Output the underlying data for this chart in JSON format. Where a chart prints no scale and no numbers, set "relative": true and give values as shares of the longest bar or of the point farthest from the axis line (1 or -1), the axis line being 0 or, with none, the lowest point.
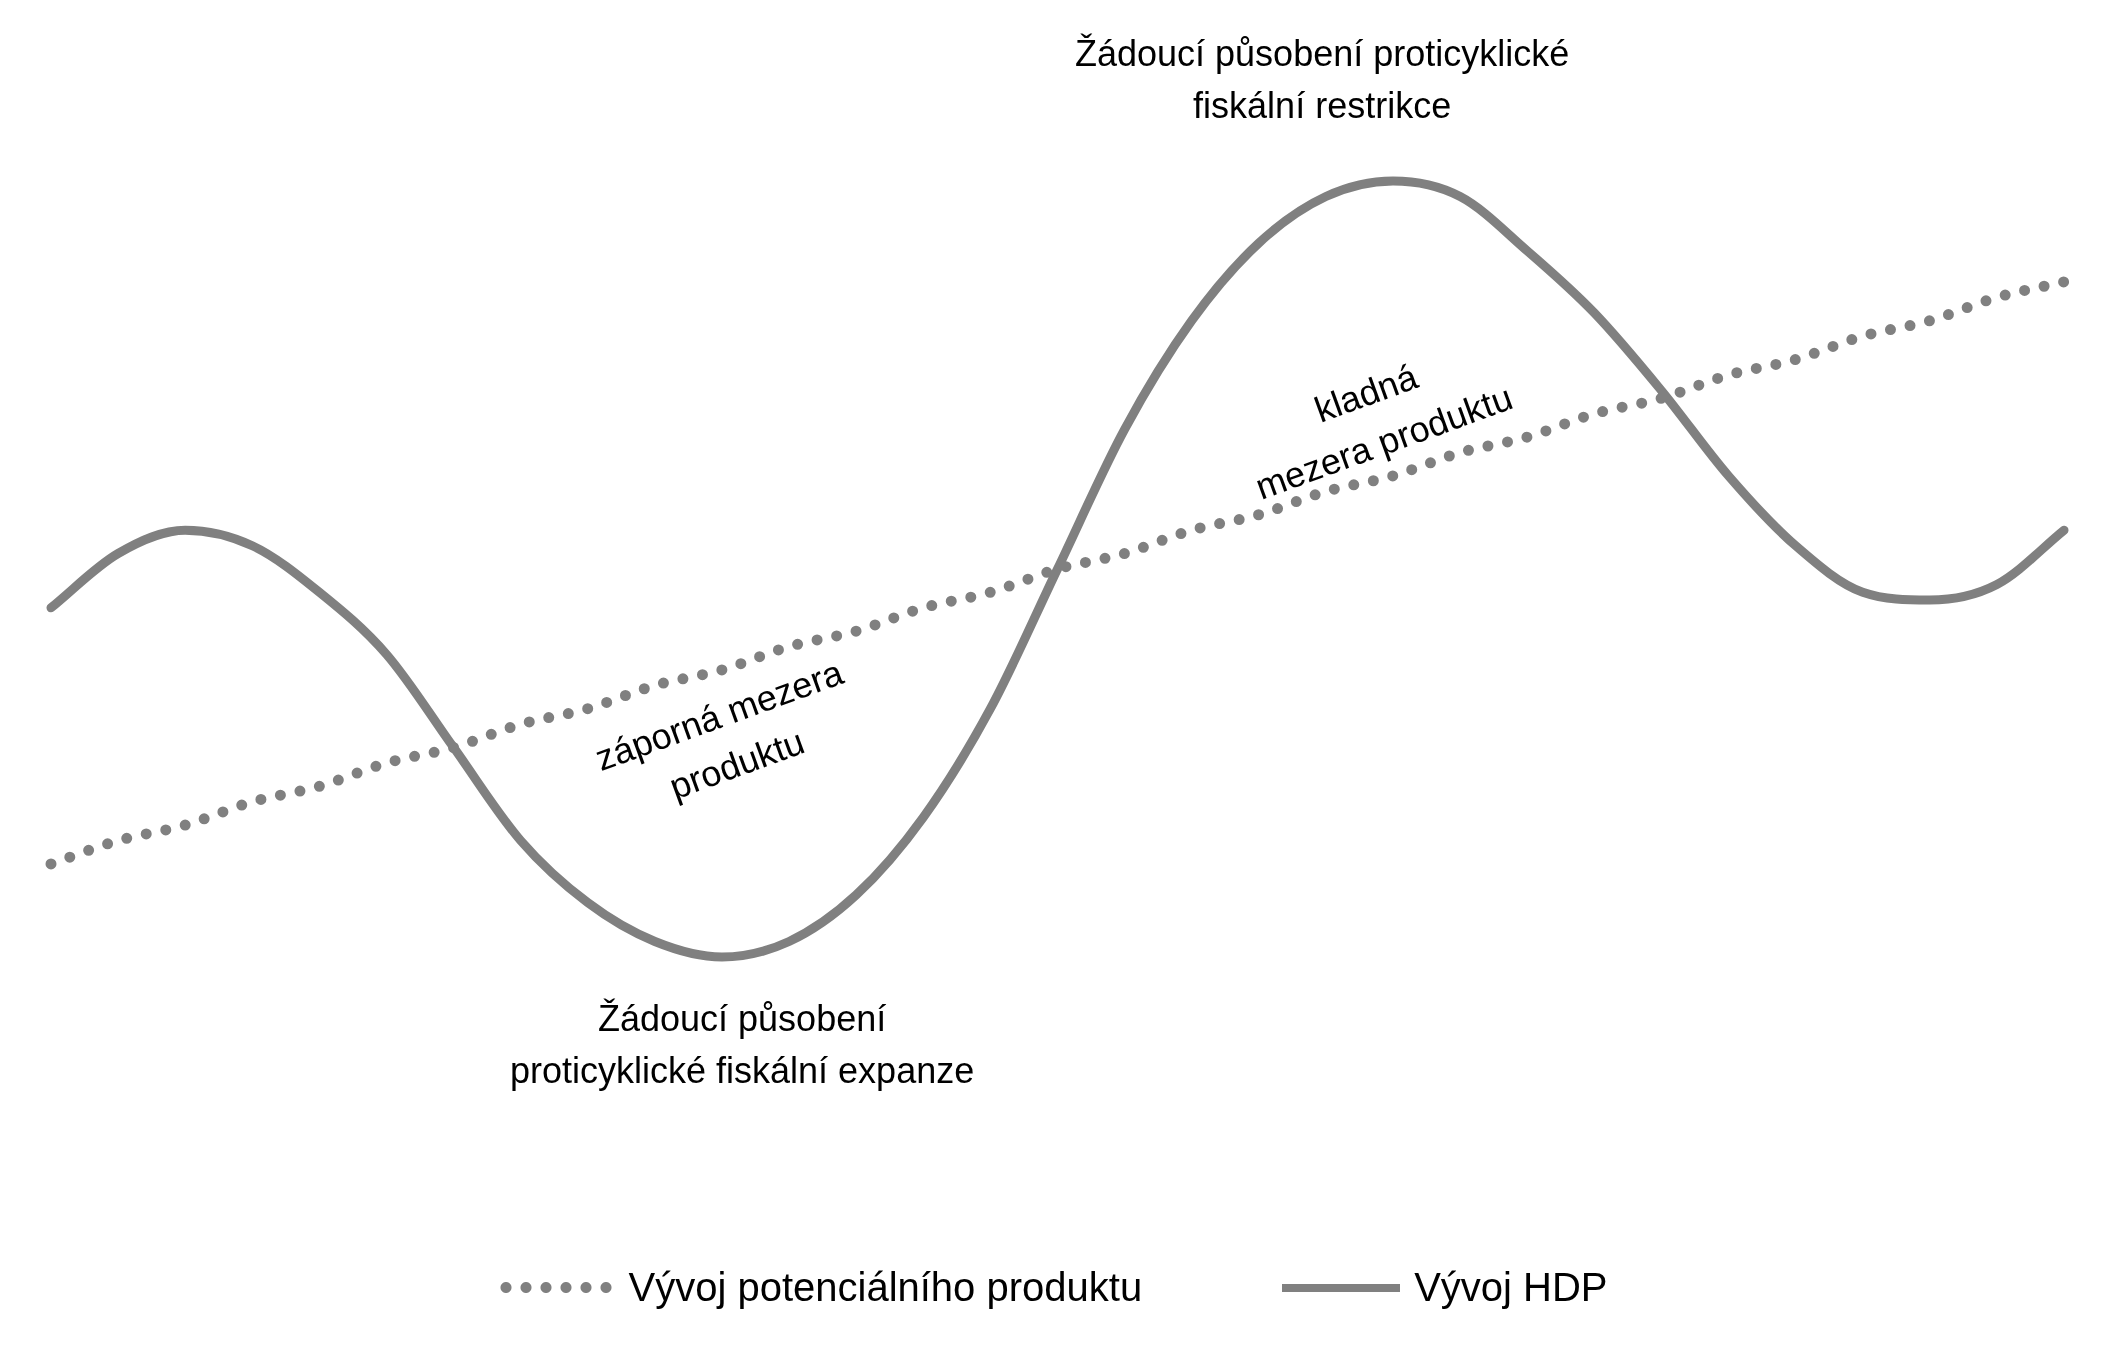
{
  "chart_data": {
    "type": "line",
    "relative": true,
    "categories": [
      null,
      null,
      null,
      null,
      null,
      null,
      null,
      null,
      null,
      null,
      null,
      null,
      null,
      null,
      null,
      null,
      null,
      null,
      null,
      null,
      null,
      null,
      null,
      null,
      null,
      null,
      null,
      null,
      null,
      null,
      null
    ],
    "series": [
      {
        "name": "Vývoj potenciálního produktu",
        "color": "#808080",
        "line_style": "dotted",
        "values": [
          0.12,
          0.15,
          0.17,
          0.2,
          0.22,
          0.25,
          0.27,
          0.3,
          0.32,
          0.35,
          0.37,
          0.4,
          0.42,
          0.45,
          0.47,
          0.5,
          0.52,
          0.55,
          0.57,
          0.6,
          0.62,
          0.65,
          0.67,
          0.7,
          0.72,
          0.75,
          0.77,
          0.8,
          0.82,
          0.85,
          0.87
        ]
      },
      {
        "name": "Vývoj HDP",
        "color": "#808080",
        "line_style": "solid",
        "values": [
          0.45,
          0.52,
          0.55,
          0.53,
          0.47,
          0.39,
          0.27,
          0.15,
          0.07,
          0.02,
          0,
          0.02,
          0.08,
          0.18,
          0.32,
          0.5,
          0.68,
          0.82,
          0.92,
          0.98,
          1,
          0.98,
          0.91,
          0.83,
          0.73,
          0.62,
          0.53,
          0.47,
          0.46,
          0.48,
          0.55
        ]
      }
    ],
    "annotations": [
      "Žádoucí působení proticyklické\nfiskální restrikce",
      "Žádoucí působení\nproticyklické fiskální expanze",
      "záporná mezera\nproduktu",
      "kladná\nmezera produktu"
    ],
    "legend": "bottom",
    "marker": "none"
  }
}
